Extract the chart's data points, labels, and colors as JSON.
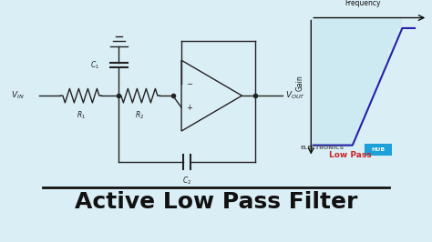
{
  "bg_color": "#daeef5",
  "title": "Active Low Pass Filter",
  "title_color": "#111111",
  "title_fontsize": 18,
  "watermark_text": "ELECTRONICS",
  "watermark_hub": "HUB",
  "watermark_color": "#666666",
  "watermark_hub_bg": "#1ba0d8",
  "circuit_color": "#222222",
  "plot_line_color": "#2222aa",
  "plot_bg_color": "#c8e8f2",
  "plot_label": "Low Pass",
  "plot_label_color": "#cc2222",
  "plot_axis_color": "#111111",
  "gain_label": "Gain",
  "freq_label": "Frequency",
  "fig_w": 4.74,
  "fig_h": 2.66,
  "dpi": 100
}
